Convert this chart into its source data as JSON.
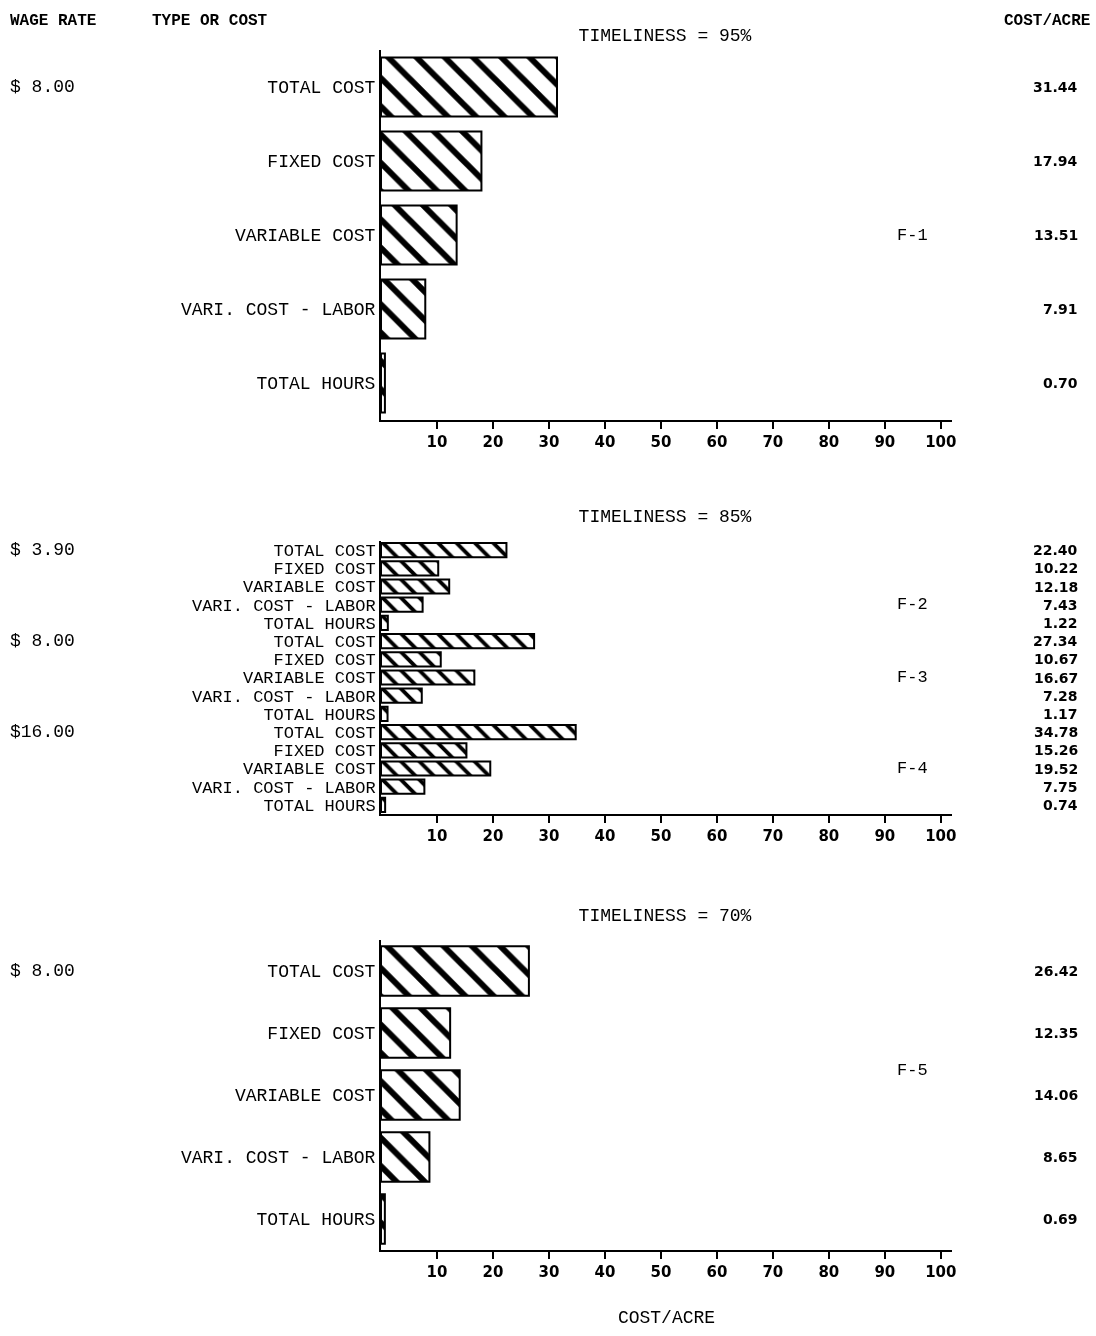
{
  "chart_data": [
    {
      "type": "bar",
      "orientation": "horizontal",
      "title": "TIMELINESS = 95%",
      "ylabel": "TYPE OR COST",
      "categories": [
        "TOTAL COST",
        "FIXED COST",
        "VARIABLE COST",
        "VARI. COST - LABOR",
        "TOTAL HOURS"
      ],
      "values": [
        31.44,
        17.94,
        13.51,
        7.91,
        0.7
      ],
      "value_labels": [
        "31.44",
        "17.94",
        "13.51",
        "7.91",
        "0.70"
      ],
      "color": "#000000",
      "xlim": [
        0,
        102
      ],
      "xticks": [
        10,
        20,
        30,
        40,
        50,
        60,
        70,
        80,
        90,
        100
      ],
      "annotations": [
        "WAGE RATE",
        "COST/ACRE",
        "$ 8.00",
        "F-1"
      ]
    },
    {
      "type": "bar",
      "orientation": "horizontal",
      "title": "TIMELINESS = 85%",
      "categories": [
        "TOTAL COST",
        "FIXED COST",
        "VARIABLE COST",
        "VARI. COST - LABOR",
        "TOTAL HOURS"
      ],
      "values": [
        22.4,
        10.22,
        12.18,
        7.43,
        1.22
      ],
      "value_labels": [
        "22.40",
        "10.22",
        "12.18",
        "7.43",
        "1.22"
      ],
      "color": "#000000",
      "xlim": [
        0,
        100
      ],
      "xticks": [
        10,
        20,
        30,
        40,
        50,
        60,
        70,
        80,
        90,
        100
      ],
      "tick_labels": "y",
      "annotations": [
        "$ 3.90",
        "F-2"
      ]
    },
    {
      "type": "bar",
      "orientation": "horizontal",
      "categories": [
        "TOTAL COST",
        "FIXED COST",
        "VARIABLE COST",
        "VARI. COST - LABOR",
        "TOTAL HOURS"
      ],
      "values": [
        27.34,
        10.67,
        16.67,
        7.28,
        1.17
      ],
      "value_labels": [
        "27.34",
        "10.67",
        "16.67",
        "7.28",
        "1.17"
      ],
      "color": "#000000",
      "xlim": [
        0,
        100
      ],
      "xticks": [
        10,
        20,
        30,
        40,
        50,
        60,
        70,
        80,
        90,
        100
      ],
      "tick_labels": "y",
      "annotations": [
        "$ 8.00",
        "F-3"
      ]
    },
    {
      "type": "bar",
      "orientation": "horizontal",
      "categories": [
        "TOTAL COST",
        "FIXED COST",
        "VARIABLE COST",
        "VARI. COST - LABOR",
        "TOTAL HOURS"
      ],
      "values": [
        34.78,
        15.26,
        19.52,
        7.75,
        0.74
      ],
      "value_labels": [
        "34.78",
        "15.26",
        "19.52",
        "7.75",
        "0.74"
      ],
      "color": "#000000",
      "xlim": [
        0,
        102
      ],
      "xticks": [
        10,
        20,
        30,
        40,
        50,
        60,
        70,
        80,
        90,
        100
      ],
      "annotations": [
        "$16.00",
        "F-4"
      ]
    },
    {
      "type": "bar",
      "orientation": "horizontal",
      "title": "TIMELINESS = 70%",
      "xlabel": "COST/ACRE",
      "categories": [
        "TOTAL COST",
        "FIXED COST",
        "VARIABLE COST",
        "VARI. COST - LABOR",
        "TOTAL HOURS"
      ],
      "values": [
        26.42,
        12.35,
        14.06,
        8.65,
        0.69
      ],
      "value_labels": [
        "26.42",
        "12.35",
        "14.06",
        "8.65",
        "0.69"
      ],
      "color": "#000000",
      "xlim": [
        0,
        102
      ],
      "xticks": [
        10,
        20,
        30,
        40,
        50,
        60,
        70,
        80,
        90,
        100
      ],
      "annotations": [
        "$ 8.00",
        "F-5"
      ]
    }
  ]
}
